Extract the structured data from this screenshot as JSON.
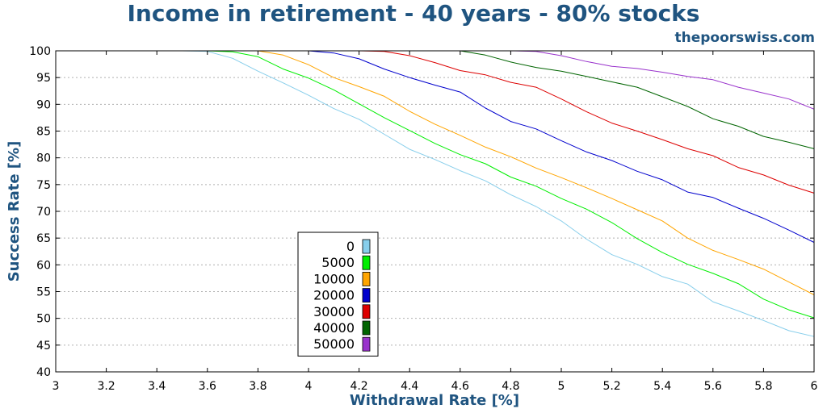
{
  "chart_data": {
    "type": "line",
    "title": "Income in retirement - 40 years - 80% stocks",
    "watermark": "thepoorswiss.com",
    "xlabel": "Withdrawal Rate [%]",
    "ylabel": "Success Rate [%]",
    "xlim": [
      3,
      6
    ],
    "ylim": [
      40,
      100
    ],
    "xticks": [
      "3",
      "3.2",
      "3.4",
      "3.6",
      "3.8",
      "4",
      "4.2",
      "4.4",
      "4.6",
      "4.8",
      "5",
      "5.2",
      "5.4",
      "5.6",
      "5.8",
      "6"
    ],
    "yticks": [
      "40",
      "45",
      "50",
      "55",
      "60",
      "65",
      "70",
      "75",
      "80",
      "85",
      "90",
      "95",
      "100"
    ],
    "grid": "horizontal-dotted",
    "legend_position": "center-left",
    "x": [
      3.0,
      3.1,
      3.2,
      3.3,
      3.4,
      3.5,
      3.6,
      3.7,
      3.8,
      3.9,
      4.0,
      4.1,
      4.2,
      4.3,
      4.4,
      4.5,
      4.6,
      4.7,
      4.8,
      4.9,
      5.0,
      5.1,
      5.2,
      5.3,
      5.4,
      5.5,
      5.6,
      5.7,
      5.8,
      5.9,
      6.0
    ],
    "series": [
      {
        "name": "0",
        "color": "#87ceeb",
        "values": [
          100,
          100,
          100,
          100,
          100,
          100,
          99.9,
          98.6,
          96.2,
          94,
          91.7,
          89.2,
          87.2,
          84.4,
          81.6,
          79.7,
          77.6,
          75.7,
          73.1,
          70.9,
          68.2,
          64.8,
          61.9,
          60.1,
          57.8,
          56.4,
          53.1,
          51.4,
          49.6,
          47.7,
          46.6
        ]
      },
      {
        "name": "5000",
        "color": "#00ee00",
        "values": [
          100,
          100,
          100,
          100,
          100,
          100,
          100,
          99.8,
          98.9,
          96.6,
          94.9,
          92.7,
          90.1,
          87.5,
          85.1,
          82.7,
          80.6,
          78.9,
          76.4,
          74.7,
          72.4,
          70.4,
          67.9,
          64.9,
          62.3,
          60.1,
          58.4,
          56.5,
          53.6,
          51.6,
          50.1
        ]
      },
      {
        "name": "10000",
        "color": "#ffa500",
        "values": [
          100,
          100,
          100,
          100,
          100,
          100,
          100,
          100,
          100,
          99.2,
          97.4,
          95,
          93.3,
          91.5,
          88.7,
          86.3,
          84.2,
          82,
          80.2,
          78.1,
          76.3,
          74.4,
          72.4,
          70.3,
          68.2,
          65,
          62.7,
          61,
          59.2,
          56.8,
          54.4
        ]
      },
      {
        "name": "20000",
        "color": "#0000cd",
        "values": [
          100,
          100,
          100,
          100,
          100,
          100,
          100,
          100,
          100,
          100,
          100,
          99.6,
          98.5,
          96.6,
          95,
          93.6,
          92.3,
          89.3,
          86.8,
          85.4,
          83.2,
          81.1,
          79.5,
          77.5,
          75.9,
          73.6,
          72.6,
          70.6,
          68.7,
          66.5,
          64.2
        ]
      },
      {
        "name": "30000",
        "color": "#dd0000",
        "values": [
          100,
          100,
          100,
          100,
          100,
          100,
          100,
          100,
          100,
          100,
          100,
          100,
          100,
          99.9,
          99.1,
          97.8,
          96.3,
          95.5,
          94.1,
          93.2,
          91,
          88.6,
          86.5,
          85,
          83.4,
          81.7,
          80.4,
          78.2,
          76.8,
          74.9,
          73.4
        ]
      },
      {
        "name": "40000",
        "color": "#006400",
        "values": [
          100,
          100,
          100,
          100,
          100,
          100,
          100,
          100,
          100,
          100,
          100,
          100,
          100,
          100,
          100,
          100,
          100,
          99.2,
          97.9,
          96.9,
          96.2,
          95.2,
          94.2,
          93.2,
          91.4,
          89.6,
          87.3,
          85.9,
          84,
          82.9,
          81.7
        ]
      },
      {
        "name": "50000",
        "color": "#9932cc",
        "values": [
          100,
          100,
          100,
          100,
          100,
          100,
          100,
          100,
          100,
          100,
          100,
          100,
          100,
          100,
          100,
          100,
          100,
          100,
          100,
          99.9,
          99.1,
          98,
          97.1,
          96.7,
          96,
          95.2,
          94.6,
          93.2,
          92.1,
          91,
          89.1
        ]
      }
    ]
  }
}
